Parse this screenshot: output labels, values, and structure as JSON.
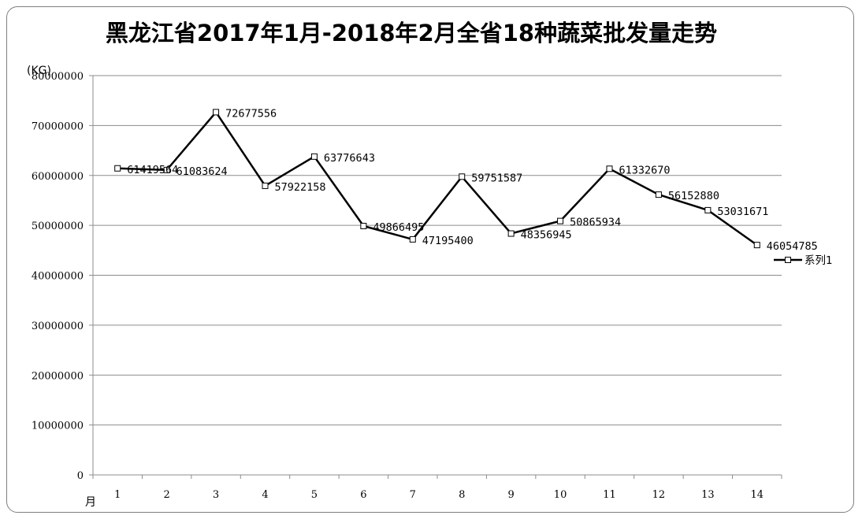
{
  "chart_data": {
    "type": "line",
    "title": "黑龙江省2017年1月-2018年2月全省18种蔬菜批发量走势",
    "ylabel": "(KG)",
    "xlabel": "月",
    "ylim": [
      0,
      80000000
    ],
    "yticks": [
      0,
      10000000,
      20000000,
      30000000,
      40000000,
      50000000,
      60000000,
      70000000,
      80000000
    ],
    "grid": true,
    "legend_position": "right",
    "categories": [
      "1",
      "2",
      "3",
      "4",
      "5",
      "6",
      "7",
      "8",
      "9",
      "10",
      "11",
      "12",
      "13",
      "14"
    ],
    "series": [
      {
        "name": "系列1",
        "color": "#000000",
        "values": [
          61419564,
          61083624,
          72677556,
          57922158,
          63776643,
          49866495,
          47195400,
          59751587,
          48356945,
          50865934,
          61332670,
          56152880,
          53031671,
          46054785
        ]
      }
    ]
  }
}
